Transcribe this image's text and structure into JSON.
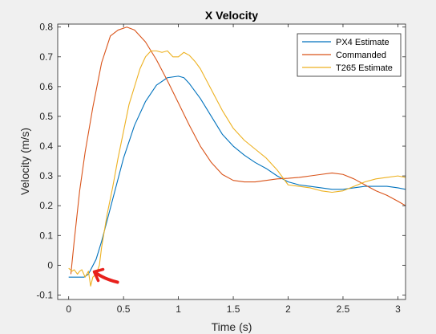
{
  "chart_data": {
    "type": "line",
    "title": "X Velocity",
    "xlabel": "Time (s)",
    "ylabel": "Velocity (m/s)",
    "xlim": [
      -0.1,
      3.07
    ],
    "ylim": [
      -0.115,
      0.81
    ],
    "xticks": [
      0,
      0.5,
      1,
      1.5,
      2,
      2.5,
      3
    ],
    "xtick_labels": [
      "0",
      "0.5",
      "1",
      "1.5",
      "2",
      "2.5",
      "3"
    ],
    "yticks": [
      -0.1,
      0,
      0.1,
      0.2,
      0.3,
      0.4,
      0.5,
      0.6,
      0.7,
      0.8
    ],
    "ytick_labels": [
      "-0.1",
      "0",
      "0.1",
      "0.2",
      "0.3",
      "0.4",
      "0.5",
      "0.6",
      "0.7",
      "0.8"
    ],
    "grid": false,
    "legend_position": "top-right",
    "annotation": {
      "type": "arrow",
      "color": "#e8201c",
      "points_to": [
        0.24,
        -0.03
      ]
    },
    "series": [
      {
        "name": "PX4 Estimate",
        "color": "#0072BD",
        "x": [
          0,
          0.14,
          0.18,
          0.25,
          0.3,
          0.35,
          0.4,
          0.5,
          0.6,
          0.7,
          0.8,
          0.9,
          1.0,
          1.05,
          1.1,
          1.2,
          1.3,
          1.4,
          1.5,
          1.6,
          1.7,
          1.8,
          1.9,
          2.0,
          2.1,
          2.2,
          2.3,
          2.4,
          2.5,
          2.6,
          2.7,
          2.8,
          2.9,
          3.0,
          3.07
        ],
        "y": [
          -0.04,
          -0.04,
          -0.03,
          0.02,
          0.08,
          0.15,
          0.22,
          0.36,
          0.47,
          0.55,
          0.605,
          0.63,
          0.635,
          0.63,
          0.61,
          0.56,
          0.5,
          0.44,
          0.4,
          0.37,
          0.345,
          0.325,
          0.3,
          0.28,
          0.27,
          0.265,
          0.26,
          0.255,
          0.255,
          0.26,
          0.265,
          0.265,
          0.265,
          0.26,
          0.255
        ]
      },
      {
        "name": "Commanded",
        "color": "#D95319",
        "x": [
          0.02,
          0.05,
          0.1,
          0.15,
          0.22,
          0.3,
          0.38,
          0.45,
          0.53,
          0.6,
          0.7,
          0.8,
          0.9,
          1.0,
          1.1,
          1.2,
          1.3,
          1.4,
          1.5,
          1.6,
          1.7,
          1.8,
          1.9,
          2.0,
          2.1,
          2.2,
          2.3,
          2.4,
          2.5,
          2.6,
          2.7,
          2.8,
          2.9,
          3.0,
          3.07
        ],
        "y": [
          -0.03,
          0.08,
          0.25,
          0.38,
          0.53,
          0.68,
          0.77,
          0.79,
          0.8,
          0.79,
          0.75,
          0.69,
          0.62,
          0.545,
          0.47,
          0.4,
          0.345,
          0.305,
          0.285,
          0.28,
          0.28,
          0.285,
          0.29,
          0.292,
          0.295,
          0.3,
          0.305,
          0.31,
          0.305,
          0.29,
          0.27,
          0.25,
          0.235,
          0.215,
          0.2
        ]
      },
      {
        "name": "T265 Estimate",
        "color": "#EDB120",
        "x": [
          0,
          0.03,
          0.05,
          0.08,
          0.1,
          0.12,
          0.15,
          0.18,
          0.2,
          0.22,
          0.25,
          0.28,
          0.3,
          0.35,
          0.4,
          0.45,
          0.5,
          0.55,
          0.6,
          0.65,
          0.7,
          0.75,
          0.8,
          0.85,
          0.9,
          0.95,
          1.0,
          1.05,
          1.1,
          1.15,
          1.2,
          1.3,
          1.4,
          1.5,
          1.6,
          1.7,
          1.8,
          1.9,
          2.0,
          2.1,
          2.2,
          2.3,
          2.4,
          2.5,
          2.6,
          2.7,
          2.8,
          2.9,
          3.0,
          3.07
        ],
        "y": [
          -0.01,
          -0.02,
          -0.015,
          -0.03,
          -0.02,
          -0.015,
          -0.04,
          -0.02,
          -0.07,
          -0.04,
          -0.03,
          0.0,
          0.06,
          0.17,
          0.26,
          0.36,
          0.45,
          0.54,
          0.6,
          0.66,
          0.7,
          0.72,
          0.72,
          0.715,
          0.72,
          0.7,
          0.7,
          0.715,
          0.705,
          0.685,
          0.66,
          0.59,
          0.52,
          0.46,
          0.42,
          0.39,
          0.36,
          0.32,
          0.27,
          0.265,
          0.26,
          0.25,
          0.245,
          0.25,
          0.265,
          0.28,
          0.29,
          0.295,
          0.3,
          0.295
        ]
      }
    ]
  }
}
